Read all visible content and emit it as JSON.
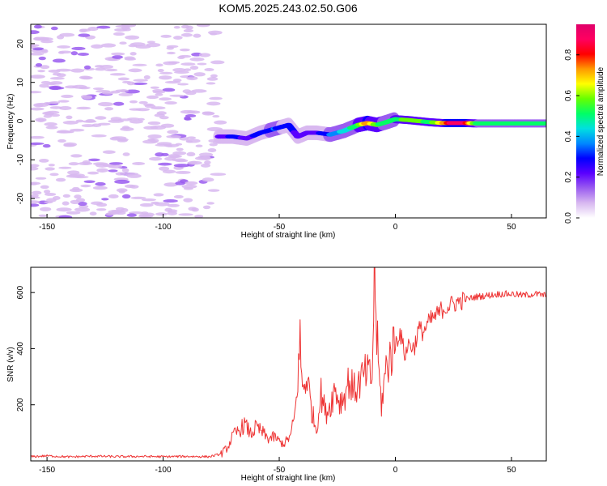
{
  "title": "KOM5.2025.243.02.50.G06",
  "colors": {
    "snr_line": "#ee3333",
    "axis": "#000000",
    "colormap": [
      "#ffffff",
      "#d8b8f0",
      "#9a5cf0",
      "#5a00ff",
      "#0000ff",
      "#0088ff",
      "#00e0e0",
      "#00ff66",
      "#66ff00",
      "#ffff00",
      "#ff9900",
      "#ff0000",
      "#ff0060",
      "#e0006a"
    ]
  },
  "chart_data": [
    {
      "type": "heatmap",
      "name": "spectrogram",
      "xlabel": "Height of straight line (km)",
      "ylabel": "Frequency (Hz)",
      "xlim": [
        -157,
        65
      ],
      "ylim": [
        -25,
        25
      ],
      "xticks": [
        -150,
        -100,
        -50,
        0,
        50
      ],
      "yticks": [
        -20,
        -10,
        0,
        10,
        20
      ],
      "colorbar": {
        "label": "Normalized spectral amplitude",
        "range": [
          0,
          0.95
        ],
        "ticks": [
          0.0,
          0.2,
          0.4,
          0.6,
          0.8
        ]
      },
      "signal_track": [
        {
          "x": -76,
          "y": -4,
          "v": 0.2
        },
        {
          "x": -70,
          "y": -4,
          "v": 0.3
        },
        {
          "x": -64,
          "y": -4.5,
          "v": 0.25
        },
        {
          "x": -58,
          "y": -3,
          "v": 0.3
        },
        {
          "x": -52,
          "y": -2,
          "v": 0.35
        },
        {
          "x": -46,
          "y": -1,
          "v": 0.3
        },
        {
          "x": -42,
          "y": -4,
          "v": 0.25
        },
        {
          "x": -38,
          "y": -3,
          "v": 0.2
        },
        {
          "x": -34,
          "y": -3,
          "v": 0.25
        },
        {
          "x": -28,
          "y": -3.5,
          "v": 0.35
        },
        {
          "x": -22,
          "y": -2.5,
          "v": 0.45
        },
        {
          "x": -16,
          "y": -1,
          "v": 0.55
        },
        {
          "x": -12,
          "y": -0.5,
          "v": 0.8
        },
        {
          "x": -8,
          "y": -1,
          "v": 0.6
        },
        {
          "x": -4,
          "y": -0.3,
          "v": 0.5
        },
        {
          "x": 0,
          "y": 0.5,
          "v": 0.55
        },
        {
          "x": 5,
          "y": 0.3,
          "v": 0.6
        },
        {
          "x": 10,
          "y": 0,
          "v": 0.6
        },
        {
          "x": 15,
          "y": -0.3,
          "v": 0.55
        },
        {
          "x": 20,
          "y": -0.5,
          "v": 0.7
        },
        {
          "x": 25,
          "y": -0.5,
          "v": 0.95
        },
        {
          "x": 30,
          "y": -0.5,
          "v": 0.9
        },
        {
          "x": 35,
          "y": -0.6,
          "v": 0.55
        },
        {
          "x": 40,
          "y": -0.6,
          "v": 0.5
        },
        {
          "x": 45,
          "y": -0.6,
          "v": 0.5
        },
        {
          "x": 50,
          "y": -0.6,
          "v": 0.5
        },
        {
          "x": 55,
          "y": -0.6,
          "v": 0.5
        },
        {
          "x": 60,
          "y": -0.6,
          "v": 0.5
        },
        {
          "x": 65,
          "y": -0.6,
          "v": 0.5
        }
      ],
      "noise_region": {
        "x_from": -157,
        "x_to": -75,
        "level": 0.1
      }
    },
    {
      "type": "line",
      "name": "snr",
      "xlabel": "Height of straight line (km)",
      "ylabel": "SNR (v/v)",
      "xlim": [
        -157,
        65
      ],
      "ylim": [
        0,
        690
      ],
      "xticks": [
        -150,
        -100,
        -50,
        0,
        50
      ],
      "yticks": [
        200,
        400,
        600
      ],
      "series": [
        {
          "name": "SNR",
          "x": [
            -157,
            -150,
            -140,
            -130,
            -120,
            -110,
            -100,
            -90,
            -80,
            -75,
            -72,
            -70,
            -67,
            -65,
            -62,
            -60,
            -57,
            -55,
            -52,
            -50,
            -48,
            -45,
            -43,
            -41,
            -40,
            -38,
            -36,
            -34,
            -32,
            -30,
            -28,
            -26,
            -24,
            -22,
            -20,
            -18,
            -16,
            -14,
            -12,
            -10,
            -9,
            -8,
            -7,
            -6,
            -4,
            -2,
            0,
            2,
            4,
            6,
            8,
            10,
            12,
            15,
            18,
            20,
            25,
            30,
            35,
            40,
            45,
            50,
            55,
            60,
            65
          ],
          "y": [
            15,
            18,
            14,
            17,
            15,
            16,
            15,
            16,
            15,
            25,
            50,
            90,
            110,
            130,
            95,
            120,
            100,
            80,
            85,
            70,
            60,
            90,
            180,
            420,
            250,
            300,
            180,
            110,
            240,
            170,
            200,
            260,
            210,
            230,
            290,
            250,
            270,
            300,
            310,
            290,
            690,
            450,
            300,
            200,
            330,
            380,
            420,
            460,
            380,
            420,
            400,
            470,
            460,
            500,
            520,
            540,
            560,
            575,
            585,
            590,
            595,
            595,
            590,
            595,
            590
          ]
        }
      ]
    }
  ]
}
